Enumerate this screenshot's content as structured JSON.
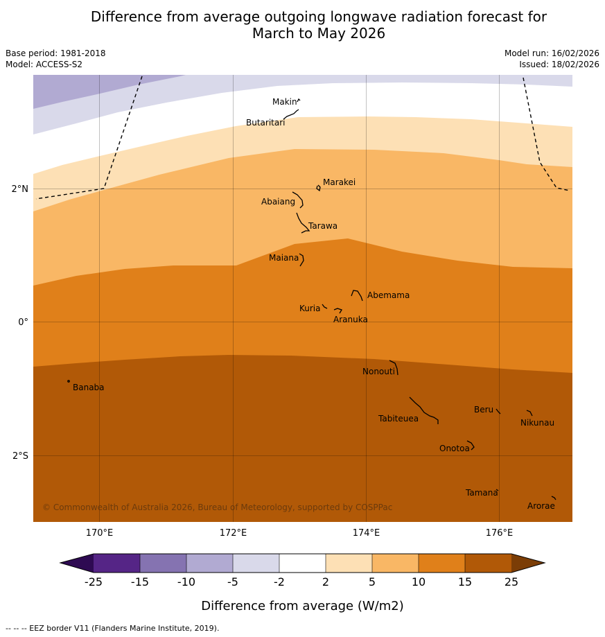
{
  "title_line1": "Difference from average outgoing longwave radiation forecast for",
  "title_line2": "March to May 2026",
  "meta": {
    "base_period": "Base period: 1981-2018",
    "model": "Model: ACCESS-S2",
    "model_run": "Model run: 16/02/2026",
    "issued": "Issued: 18/02/2026"
  },
  "axes": {
    "x_ticks": [
      "170°E",
      "172°E",
      "174°E",
      "176°E"
    ],
    "y_ticks": [
      "2°N",
      "0°",
      "2°S"
    ]
  },
  "islands": [
    {
      "name": "Makin"
    },
    {
      "name": "Butaritari"
    },
    {
      "name": "Marakei"
    },
    {
      "name": "Abaiang"
    },
    {
      "name": "Tarawa"
    },
    {
      "name": "Maiana"
    },
    {
      "name": "Abemama"
    },
    {
      "name": "Kuria"
    },
    {
      "name": "Aranuka"
    },
    {
      "name": "Nonouti"
    },
    {
      "name": "Banaba"
    },
    {
      "name": "Beru"
    },
    {
      "name": "Tabiteuea"
    },
    {
      "name": "Nikunau"
    },
    {
      "name": "Onotoa"
    },
    {
      "name": "Tamana"
    },
    {
      "name": "Arorae"
    }
  ],
  "copyright": "© Commonwealth of Australia 2026, Bureau of Meteorology, supported by COSPPac",
  "colorbar": {
    "ticks": [
      "-25",
      "-15",
      "-10",
      "-5",
      "-2",
      "2",
      "5",
      "10",
      "15",
      "25"
    ],
    "colors": [
      "#552586",
      "#8573b1",
      "#b1aad2",
      "#d9d9ea",
      "#ffffff",
      "#fde0b5",
      "#f9b765",
      "#e0801a",
      "#b15907"
    ],
    "extend_low": "#2e0a52",
    "extend_high": "#7b3d06",
    "label": "Difference from average (W/m2)"
  },
  "footnote": "--  --  -- EEZ border V11 (Flanders Marine Institute, 2019)."
}
